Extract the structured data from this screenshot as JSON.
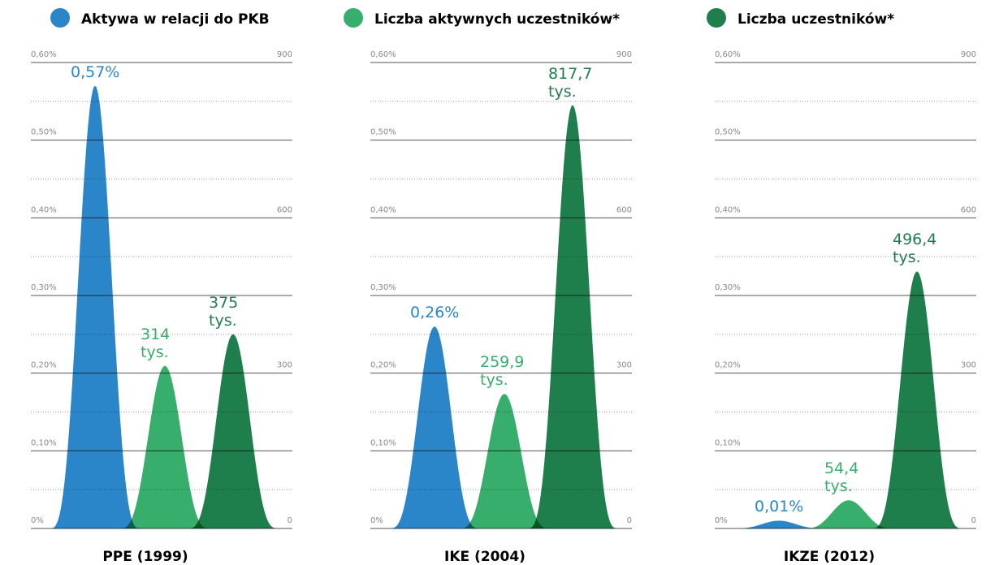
{
  "chart_data": {
    "type": "peak",
    "series": [
      {
        "name": "Aktywa w relacji do PKB",
        "color": "#2a86c8",
        "axis": "y"
      },
      {
        "name": "Liczba aktywnych uczestników*",
        "color": "#37ae6b",
        "axis": "y2"
      },
      {
        "name": "Liczba uczestników*",
        "color": "#1f7f4c",
        "axis": "y2"
      }
    ],
    "ylim": [
      0,
      0.6
    ],
    "yticks": [
      {
        "value": 0,
        "label": "0%"
      },
      {
        "value": 0.1,
        "label": "0,10%"
      },
      {
        "value": 0.2,
        "label": "0,20%"
      },
      {
        "value": 0.3,
        "label": "0,30%"
      },
      {
        "value": 0.4,
        "label": "0,40%"
      },
      {
        "value": 0.5,
        "label": "0,50%"
      },
      {
        "value": 0.6,
        "label": "0,60%"
      }
    ],
    "yminor": [
      0.05,
      0.15,
      0.25,
      0.35,
      0.45,
      0.55
    ],
    "y2lim": [
      0,
      900
    ],
    "y2ticks": [
      0,
      300,
      600,
      900
    ],
    "panels": [
      {
        "title": "PPE (1999)",
        "values": [
          0.57,
          314,
          375
        ],
        "value_labels": [
          "0,57%",
          "314 tys.",
          "375 tys."
        ]
      },
      {
        "title": "IKE (2004)",
        "values": [
          0.26,
          259.9,
          817.7
        ],
        "value_labels": [
          "0,26%",
          "259,9 tys.",
          "817,7 tys."
        ]
      },
      {
        "title": "IKZE (2012)",
        "values": [
          0.01,
          54.4,
          496.4
        ],
        "value_labels": [
          "0,01%",
          "54,4 tys.",
          "496,4 tys."
        ]
      }
    ]
  }
}
